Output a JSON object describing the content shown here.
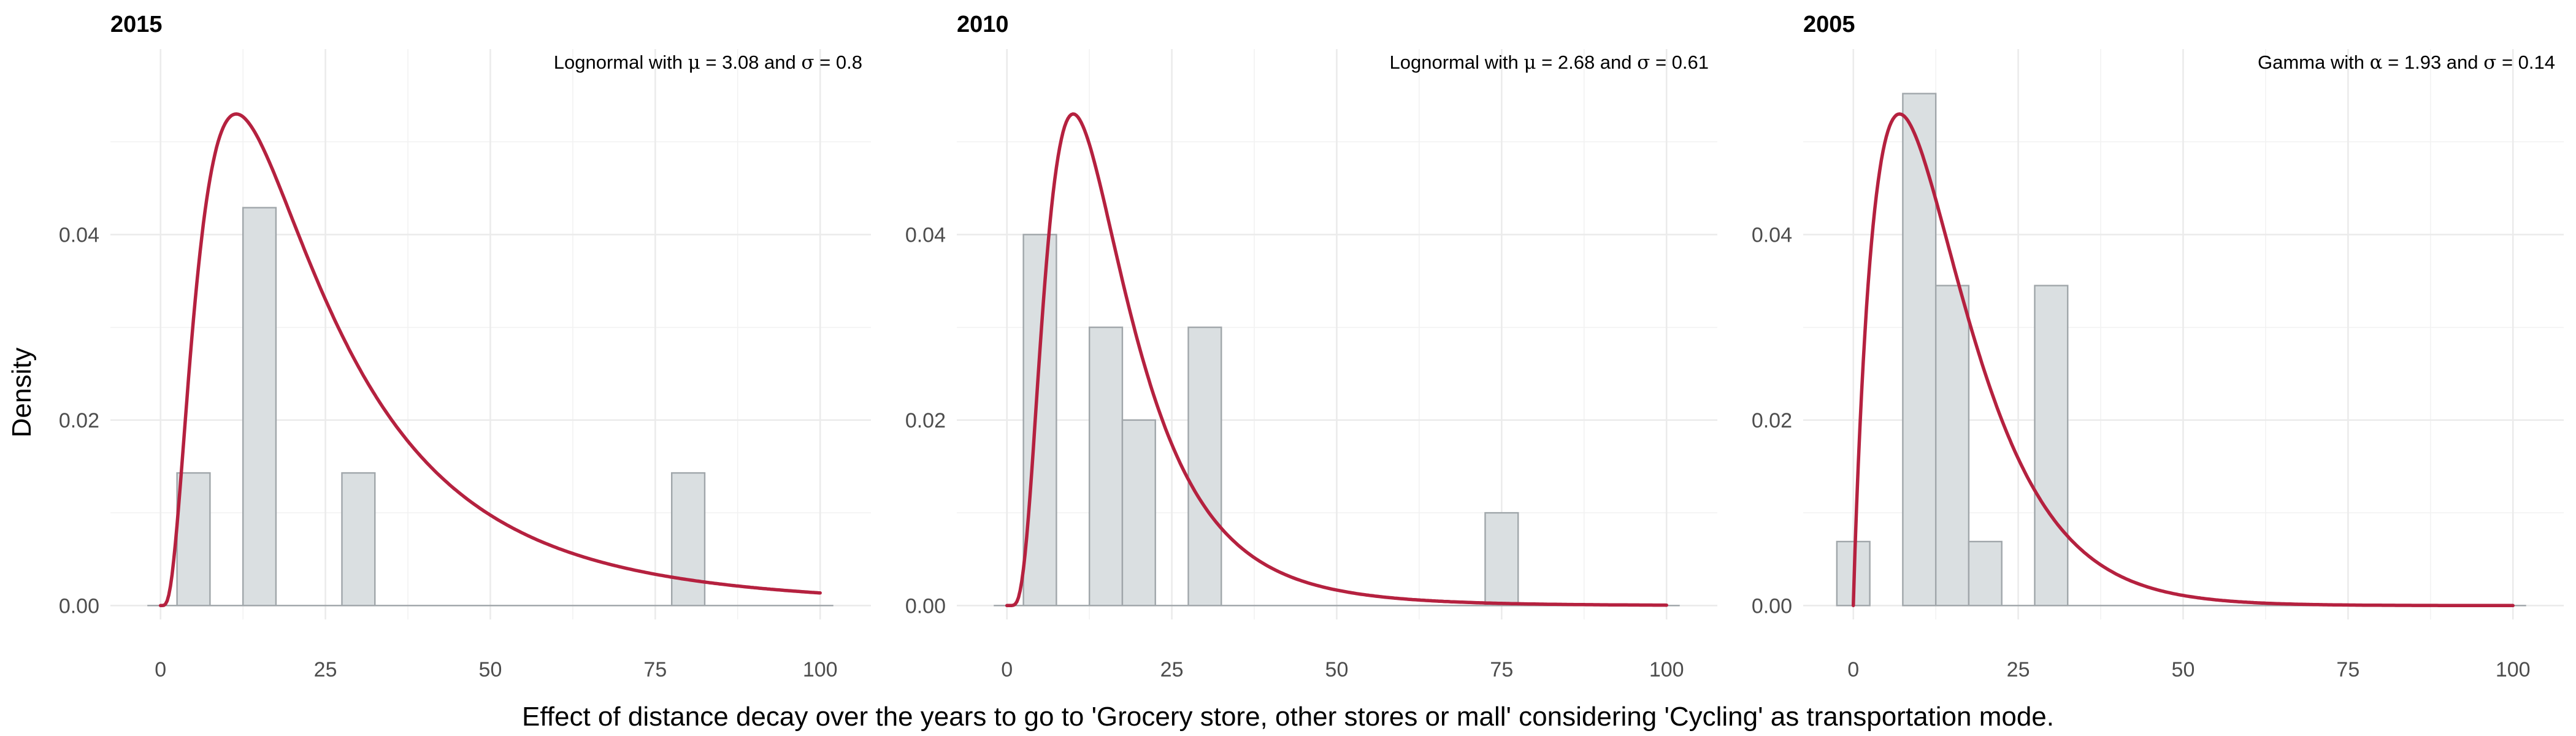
{
  "chart_data": {
    "type": "bar",
    "xlabel": "Effect of distance decay over the years to go to 'Grocery store, other stores or mall' considering 'Cycling' as transportation mode.",
    "ylabel": "Density",
    "xlim": [
      0,
      100
    ],
    "ylim": [
      0,
      0.06
    ],
    "x_ticks": [
      0,
      25,
      50,
      75,
      100
    ],
    "y_ticks": [
      0.0,
      0.02,
      0.04
    ],
    "y_tick_labels": [
      "0.00",
      "0.02",
      "0.04"
    ],
    "grid": true,
    "bin_width": 5,
    "colors": {
      "bars_fill": "#dadfe1",
      "bars_stroke": "#a0a6aa",
      "curve": "#b5213f",
      "grid": "#ebebeb"
    },
    "panels": [
      {
        "title": "2015",
        "annotation": {
          "prefix": "Lognormal with ",
          "p1": "μ",
          "mid1": " = 3.08 and ",
          "p2": "σ",
          "mid2": " = 0.8"
        },
        "distribution": {
          "family": "lognormal",
          "mu": 3.08,
          "sigma": 0.8,
          "mode_x": 7.0,
          "peak_density": 0.053
        },
        "bars": [
          {
            "x0": 2.5,
            "x1": 7.5,
            "density": 0.0143
          },
          {
            "x0": 12.5,
            "x1": 17.5,
            "density": 0.0429
          },
          {
            "x0": 27.5,
            "x1": 32.5,
            "density": 0.0143
          },
          {
            "x0": 77.5,
            "x1": 82.5,
            "density": 0.0143
          }
        ],
        "zero_segments": [
          [
            -2,
            2.5
          ],
          [
            7.5,
            12.5
          ],
          [
            17.5,
            27.5
          ],
          [
            32.5,
            77.5
          ],
          [
            82.5,
            102
          ]
        ]
      },
      {
        "title": "2010",
        "annotation": {
          "prefix": "Lognormal with ",
          "p1": "μ",
          "mid1": " = 2.68 and ",
          "p2": "σ",
          "mid2": " = 0.61"
        },
        "distribution": {
          "family": "lognormal",
          "mu": 2.68,
          "sigma": 0.61,
          "mode_x": 6.8,
          "peak_density": 0.053
        },
        "bars": [
          {
            "x0": 2.5,
            "x1": 7.5,
            "density": 0.04
          },
          {
            "x0": 12.5,
            "x1": 17.5,
            "density": 0.03
          },
          {
            "x0": 17.5,
            "x1": 22.5,
            "density": 0.02
          },
          {
            "x0": 27.5,
            "x1": 32.5,
            "density": 0.03
          },
          {
            "x0": 72.5,
            "x1": 77.5,
            "density": 0.01
          }
        ],
        "zero_segments": [
          [
            -2,
            2.5
          ],
          [
            7.5,
            12.5
          ],
          [
            22.5,
            27.5
          ],
          [
            32.5,
            72.5
          ],
          [
            77.5,
            102
          ]
        ]
      },
      {
        "title": "2005",
        "annotation": {
          "prefix": "Gamma with ",
          "p1": "α",
          "mid1": " = 1.93 and ",
          "p2": "σ",
          "mid2": " = 0.14"
        },
        "distribution": {
          "family": "gamma",
          "alpha": 1.93,
          "sigma": 0.14,
          "mode_x": 7.0,
          "peak_density": 0.053
        },
        "bars": [
          {
            "x0": -2.5,
            "x1": 2.5,
            "density": 0.0069
          },
          {
            "x0": 7.5,
            "x1": 12.5,
            "density": 0.0552
          },
          {
            "x0": 12.5,
            "x1": 17.5,
            "density": 0.0345
          },
          {
            "x0": 17.5,
            "x1": 22.5,
            "density": 0.0069
          },
          {
            "x0": 27.5,
            "x1": 32.5,
            "density": 0.0345
          }
        ],
        "zero_segments": [
          [
            22.5,
            27.5
          ],
          [
            32.5,
            102
          ]
        ]
      }
    ]
  }
}
